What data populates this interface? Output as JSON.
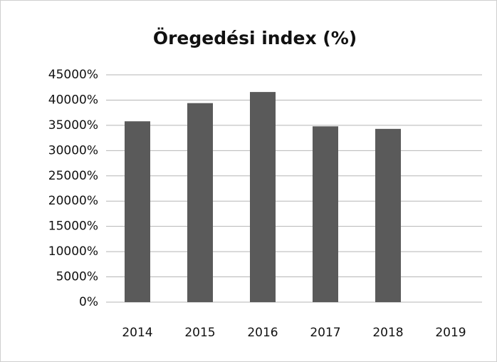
{
  "chart_data": {
    "type": "bar",
    "title": "Öregedési index (%)",
    "categories": [
      "2014",
      "2015",
      "2016",
      "2017",
      "2018",
      "2019"
    ],
    "values": [
      35800,
      39400,
      41600,
      34800,
      34300,
      null
    ],
    "color": "#5a5a5a",
    "ylim": [
      0,
      45000
    ],
    "yticks": [
      {
        "value": 0,
        "label": "0%"
      },
      {
        "value": 5000,
        "label": "5000%"
      },
      {
        "value": 10000,
        "label": "10000%"
      },
      {
        "value": 15000,
        "label": "15000%"
      },
      {
        "value": 20000,
        "label": "20000%"
      },
      {
        "value": 25000,
        "label": "25000%"
      },
      {
        "value": 30000,
        "label": "30000%"
      },
      {
        "value": 35000,
        "label": "35000%"
      },
      {
        "value": 40000,
        "label": "40000%"
      },
      {
        "value": 45000,
        "label": "45000%"
      }
    ],
    "grid": true
  }
}
